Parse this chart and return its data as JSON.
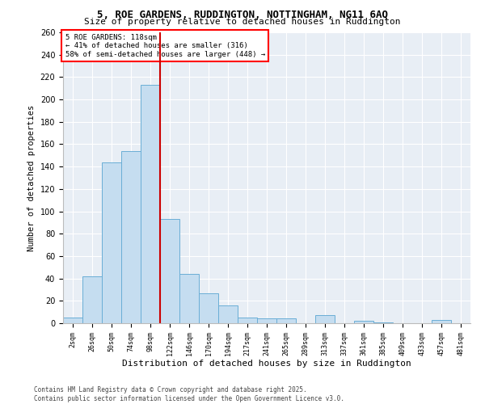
{
  "title_line1": "5, ROE GARDENS, RUDDINGTON, NOTTINGHAM, NG11 6AQ",
  "title_line2": "Size of property relative to detached houses in Ruddington",
  "xlabel": "Distribution of detached houses by size in Ruddington",
  "ylabel": "Number of detached properties",
  "footer_line1": "Contains HM Land Registry data © Crown copyright and database right 2025.",
  "footer_line2": "Contains public sector information licensed under the Open Government Licence v3.0.",
  "annotation_line1": "5 ROE GARDENS: 118sqm",
  "annotation_line2": "← 41% of detached houses are smaller (316)",
  "annotation_line3": "58% of semi-detached houses are larger (448) →",
  "bar_labels": [
    "2sqm",
    "26sqm",
    "50sqm",
    "74sqm",
    "98sqm",
    "122sqm",
    "146sqm",
    "170sqm",
    "194sqm",
    "217sqm",
    "241sqm",
    "265sqm",
    "289sqm",
    "313sqm",
    "337sqm",
    "361sqm",
    "385sqm",
    "409sqm",
    "433sqm",
    "457sqm",
    "481sqm"
  ],
  "bar_values": [
    5,
    42,
    144,
    154,
    213,
    93,
    44,
    27,
    16,
    5,
    4,
    4,
    0,
    7,
    0,
    2,
    1,
    0,
    0,
    3,
    0
  ],
  "bar_color": "#c5ddf0",
  "bar_edge_color": "#6aaed6",
  "vline_color": "#cc0000",
  "vline_x_index": 5,
  "plot_bg_color": "#e8eef5",
  "ylim": [
    0,
    260
  ],
  "yticks": [
    0,
    20,
    40,
    60,
    80,
    100,
    120,
    140,
    160,
    180,
    200,
    220,
    240,
    260
  ],
  "title1_fontsize": 9,
  "title2_fontsize": 8,
  "ylabel_fontsize": 7.5,
  "xlabel_fontsize": 8,
  "tick_fontsize": 7,
  "xtick_fontsize": 6,
  "footer_fontsize": 5.5,
  "annot_fontsize": 6.5
}
